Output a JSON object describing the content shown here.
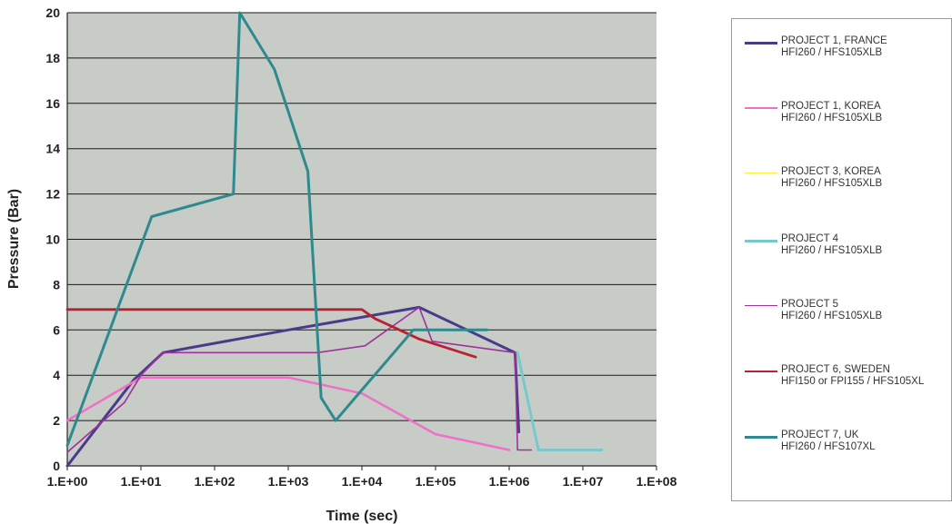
{
  "chart_data": {
    "type": "line",
    "title": "",
    "xlabel": "Time (sec)",
    "ylabel": "Pressure (Bar)",
    "x_scale": "log",
    "xlim": [
      1,
      100000000
    ],
    "ylim": [
      0,
      20
    ],
    "grid": "horizontal",
    "legend_position": "right",
    "x_ticks": [
      "1.E+00",
      "1.E+01",
      "1.E+02",
      "1.E+03",
      "1.E+04",
      "1.E+05",
      "1.E+06",
      "1.E+07",
      "1.E+08"
    ],
    "y_ticks": [
      "0",
      "2",
      "4",
      "6",
      "8",
      "10",
      "12",
      "14",
      "16",
      "18",
      "20"
    ],
    "series": [
      {
        "name": "PROJECT 1, FRANCE",
        "detail": "HFI260 / HFS105XLB",
        "color": "#4a3a8c",
        "width": 3,
        "points": [
          [
            1,
            0
          ],
          [
            8,
            3.8
          ],
          [
            20,
            5
          ],
          [
            1000,
            6
          ],
          [
            60000,
            7
          ],
          [
            1200000,
            5
          ],
          [
            1350000,
            1.5
          ]
        ]
      },
      {
        "name": "PROJECT 1, KOREA",
        "detail": "HFI260 / HFS105XLB",
        "color": "#f06fc8",
        "width": 2.5,
        "points": [
          [
            1,
            2
          ],
          [
            10,
            3.9
          ],
          [
            1000,
            3.9
          ],
          [
            10000,
            3.2
          ],
          [
            100000,
            1.4
          ],
          [
            1000000,
            0.7
          ]
        ]
      },
      {
        "name": "PROJECT 3, KOREA",
        "detail": "HFI260 / HFS105XLB",
        "color": "#fff23a",
        "width": 1.5,
        "points": []
      },
      {
        "name": "PROJECT 4",
        "detail": "HFI260 / HFS105XLB",
        "color": "#78c8cc",
        "width": 3,
        "points": [
          [
            1300000,
            5
          ],
          [
            2500000,
            0.7
          ],
          [
            18000000,
            0.7
          ]
        ]
      },
      {
        "name": "PROJECT 5",
        "detail": "HFI260 / HFS105XLB",
        "color": "#a0309a",
        "width": 1.6,
        "points": [
          [
            1,
            0.6
          ],
          [
            6,
            2.8
          ],
          [
            10,
            4
          ],
          [
            20,
            5
          ],
          [
            2500,
            5
          ],
          [
            11000,
            5.3
          ],
          [
            60000,
            7
          ],
          [
            90000,
            5.5
          ],
          [
            1200000,
            5
          ],
          [
            1300000,
            0.7
          ],
          [
            2000000,
            0.7
          ]
        ]
      },
      {
        "name": "PROJECT 6, SWEDEN",
        "detail": "HFI150 or FPI155 / HFS105XL",
        "color": "#b82232",
        "width": 2.8,
        "points": [
          [
            1,
            6.9
          ],
          [
            10000,
            6.9
          ],
          [
            15000,
            6.5
          ],
          [
            60000,
            5.6
          ],
          [
            350000,
            4.8
          ]
        ]
      },
      {
        "name": "PROJECT 7, UK",
        "detail": "HFI260 / HFS107XL",
        "color": "#2e8a8e",
        "width": 3,
        "points": [
          [
            1,
            0.9
          ],
          [
            14,
            11
          ],
          [
            180,
            12
          ],
          [
            220,
            20
          ],
          [
            650,
            17.5
          ],
          [
            1850,
            13
          ],
          [
            2800,
            3
          ],
          [
            4400,
            2
          ],
          [
            50000,
            6
          ],
          [
            500000,
            6
          ]
        ]
      }
    ]
  }
}
